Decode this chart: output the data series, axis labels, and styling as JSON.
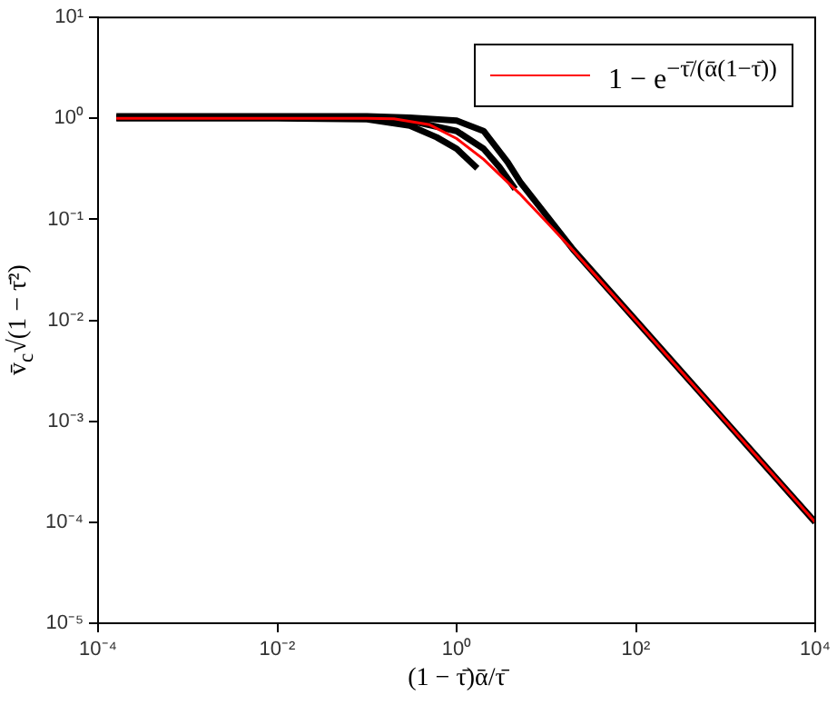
{
  "chart_data": {
    "type": "line",
    "xlabel": "(1 − τ̄)ᾱ/τ̄",
    "ylabel": "v̄$_{c}$√(1 − τ̄²)",
    "log": "xy",
    "grid": false,
    "legend": "top right",
    "marker": "none",
    "line_style": "solid",
    "xlim": [
      0.0001,
      10000
    ],
    "ylim": [
      1e-05,
      10
    ],
    "xticks": [
      {
        "value": 0.0001,
        "label": "10⁻⁴"
      },
      {
        "value": 0.01,
        "label": "10⁻²"
      },
      {
        "value": 1,
        "label": "10⁰"
      },
      {
        "value": 100,
        "label": "10²"
      },
      {
        "value": 10000,
        "label": "10⁴"
      }
    ],
    "yticks": [
      {
        "value": 1e-05,
        "label": "10⁻⁵"
      },
      {
        "value": 0.0001,
        "label": "10⁻⁴"
      },
      {
        "value": 0.001,
        "label": "10⁻³"
      },
      {
        "value": 0.01,
        "label": "10⁻²"
      },
      {
        "value": 0.1,
        "label": "10⁻¹"
      },
      {
        "value": 1,
        "label": "10⁰"
      },
      {
        "value": 10,
        "label": "10¹"
      }
    ],
    "series": [
      {
        "color": "#000000",
        "x": [
          0.00016,
          0.01,
          0.1,
          0.3,
          1,
          2,
          3.7,
          5.2,
          10,
          20,
          100,
          1000,
          10000
        ],
        "values": [
          1.05,
          1.05,
          1.05,
          1.02,
          0.95,
          0.75,
          0.37,
          0.23,
          0.11,
          0.05,
          0.01,
          0.001,
          0.0001
        ]
      },
      {
        "color": "#000000",
        "x": [
          0.00016,
          0.01,
          0.1,
          0.3,
          1,
          2,
          3,
          4.5
        ],
        "values": [
          1.02,
          1.02,
          1.0,
          0.95,
          0.75,
          0.5,
          0.33,
          0.2
        ]
      },
      {
        "color": "#000000",
        "x": [
          0.00016,
          0.01,
          0.1,
          0.3,
          0.6,
          1,
          1.7
        ],
        "values": [
          1.0,
          1.0,
          0.98,
          0.85,
          0.65,
          0.5,
          0.32
        ]
      },
      {
        "name": "1 − e$^{−τ̄/(ᾱ(1−τ̄))}$",
        "color": "#ff0000",
        "x": [
          0.00016,
          0.01,
          0.1,
          0.2,
          0.5,
          1,
          2,
          5,
          10,
          20,
          100,
          1000,
          10000
        ],
        "values": [
          1,
          1,
          1,
          0.993,
          0.865,
          0.632,
          0.393,
          0.181,
          0.095,
          0.049,
          0.00995,
          0.001,
          0.0001
        ]
      }
    ]
  }
}
